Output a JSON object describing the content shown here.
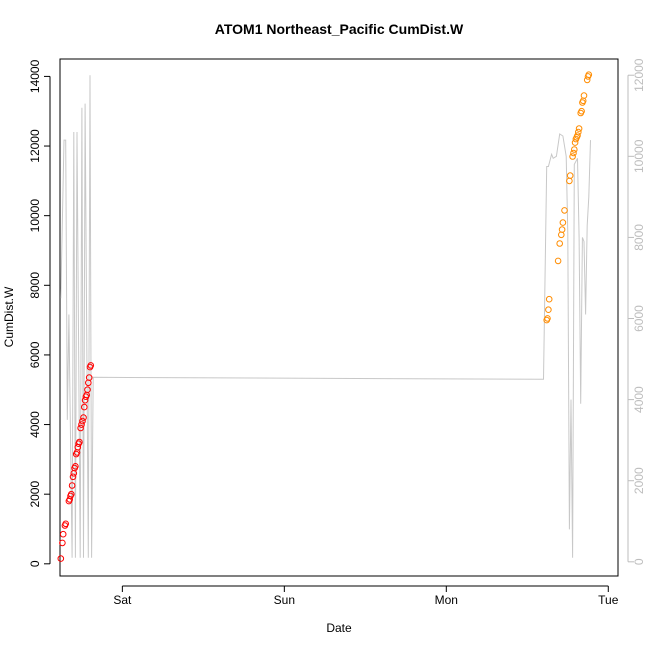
{
  "chart_data": {
    "type": "scatter",
    "title": "ATOM1 Northeast_Pacific CumDist.W",
    "xlabel": "Date",
    "ylabel": "CumDist.W",
    "x_ticks": [
      {
        "label": "Sat",
        "value": 0
      },
      {
        "label": "Sun",
        "value": 1
      },
      {
        "label": "Mon",
        "value": 2
      },
      {
        "label": "Tue",
        "value": 3
      }
    ],
    "xlim": [
      -0.385,
      3.06
    ],
    "ylim": [
      -350,
      14500
    ],
    "y_ticks": [
      0,
      2000,
      4000,
      6000,
      8000,
      10000,
      12000,
      14000
    ],
    "y2lim": [
      -350,
      12400
    ],
    "y2_ticks": [
      0,
      2000,
      4000,
      6000,
      8000,
      10000,
      12000
    ],
    "grid": false,
    "colors": {
      "series1": "#ff0000",
      "series2": "#ff8c00",
      "line": "#c8c8c8",
      "right_axis": "#bdbdbd"
    },
    "series": [
      {
        "points": [
          [
            -0.38,
            150
          ],
          [
            -0.37,
            600
          ],
          [
            -0.365,
            850
          ],
          [
            -0.355,
            1100
          ],
          [
            -0.35,
            1150
          ],
          [
            -0.33,
            1800
          ],
          [
            -0.325,
            1850
          ],
          [
            -0.32,
            1950
          ],
          [
            -0.315,
            2000
          ],
          [
            -0.31,
            2250
          ],
          [
            -0.305,
            2500
          ],
          [
            -0.3,
            2600
          ],
          [
            -0.295,
            2750
          ],
          [
            -0.29,
            2800
          ],
          [
            -0.285,
            3150
          ],
          [
            -0.28,
            3200
          ],
          [
            -0.275,
            3350
          ],
          [
            -0.27,
            3450
          ],
          [
            -0.265,
            3500
          ],
          [
            -0.258,
            3900
          ],
          [
            -0.252,
            4000
          ],
          [
            -0.246,
            4100
          ],
          [
            -0.24,
            4200
          ],
          [
            -0.235,
            4500
          ],
          [
            -0.23,
            4700
          ],
          [
            -0.225,
            4800
          ],
          [
            -0.22,
            4850
          ],
          [
            -0.215,
            5000
          ],
          [
            -0.21,
            5200
          ],
          [
            -0.205,
            5350
          ],
          [
            -0.2,
            5650
          ],
          [
            -0.195,
            5700
          ]
        ]
      },
      {
        "points": [
          [
            2.62,
            7000
          ],
          [
            2.625,
            7050
          ],
          [
            2.63,
            7300
          ],
          [
            2.635,
            7600
          ],
          [
            2.69,
            8700
          ],
          [
            2.7,
            9200
          ],
          [
            2.71,
            9450
          ],
          [
            2.715,
            9600
          ],
          [
            2.72,
            9800
          ],
          [
            2.73,
            10150
          ],
          [
            2.76,
            11000
          ],
          [
            2.765,
            11150
          ],
          [
            2.78,
            11700
          ],
          [
            2.785,
            11800
          ],
          [
            2.79,
            11900
          ],
          [
            2.795,
            12100
          ],
          [
            2.8,
            12200
          ],
          [
            2.805,
            12250
          ],
          [
            2.81,
            12300
          ],
          [
            2.815,
            12400
          ],
          [
            2.82,
            12500
          ],
          [
            2.83,
            12950
          ],
          [
            2.835,
            13000
          ],
          [
            2.84,
            13250
          ],
          [
            2.845,
            13300
          ],
          [
            2.85,
            13450
          ],
          [
            2.87,
            13900
          ],
          [
            2.875,
            14000
          ],
          [
            2.88,
            14050
          ]
        ]
      }
    ],
    "line_series": {
      "points": [
        [
          -0.38,
          6500
        ],
        [
          -0.36,
          10400
        ],
        [
          -0.35,
          10400
        ],
        [
          -0.34,
          3500
        ],
        [
          -0.33,
          6100
        ],
        [
          -0.31,
          100
        ],
        [
          -0.3,
          10600
        ],
        [
          -0.29,
          100
        ],
        [
          -0.28,
          10600
        ],
        [
          -0.26,
          100
        ],
        [
          -0.25,
          11200
        ],
        [
          -0.24,
          100
        ],
        [
          -0.23,
          11300
        ],
        [
          -0.21,
          100
        ],
        [
          -0.2,
          12000
        ],
        [
          -0.19,
          100
        ],
        [
          -0.18,
          4550
        ],
        [
          2.6,
          4500
        ],
        [
          2.62,
          9750
        ],
        [
          2.63,
          9750
        ],
        [
          2.65,
          10050
        ],
        [
          2.66,
          9950
        ],
        [
          2.68,
          10000
        ],
        [
          2.7,
          10550
        ],
        [
          2.72,
          10500
        ],
        [
          2.74,
          10000
        ],
        [
          2.75,
          8100
        ],
        [
          2.76,
          800
        ],
        [
          2.77,
          4000
        ],
        [
          2.78,
          100
        ],
        [
          2.79,
          9800
        ],
        [
          2.81,
          9950
        ],
        [
          2.82,
          8000
        ],
        [
          2.83,
          3900
        ],
        [
          2.84,
          8000
        ],
        [
          2.85,
          7900
        ],
        [
          2.86,
          6100
        ],
        [
          2.87,
          8300
        ],
        [
          2.88,
          9000
        ],
        [
          2.89,
          10400
        ]
      ]
    }
  }
}
